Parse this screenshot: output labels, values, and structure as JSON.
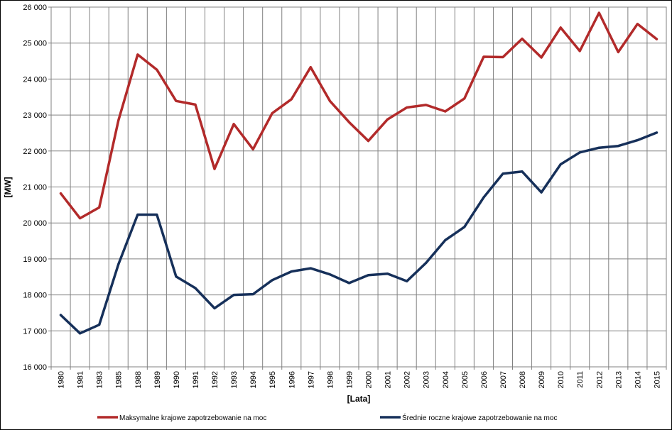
{
  "chart_data": {
    "type": "line",
    "title": "",
    "xlabel": "[Lata]",
    "ylabel": "[MW]",
    "ylim": [
      16000,
      26000
    ],
    "yticks": [
      16000,
      17000,
      18000,
      19000,
      20000,
      21000,
      22000,
      23000,
      24000,
      25000,
      26000
    ],
    "ytick_labels": [
      "16 000",
      "17 000",
      "18 000",
      "19 000",
      "20 000",
      "21 000",
      "22 000",
      "23 000",
      "24 000",
      "25 000",
      "26 000"
    ],
    "categories": [
      "1980",
      "1981",
      "1983",
      "1985",
      "1988",
      "1989",
      "1990",
      "1991",
      "1992",
      "1993",
      "1994",
      "1995",
      "1996",
      "1997",
      "1998",
      "1999",
      "2000",
      "2001",
      "2002",
      "2003",
      "2004",
      "2005",
      "2006",
      "2007",
      "2008",
      "2009",
      "2010",
      "2011",
      "2012",
      "2013",
      "2014",
      "2015"
    ],
    "grid": true,
    "legend_position": "bottom",
    "series": [
      {
        "name": "Maksymalne krajowe zapotrzebowanie na moc",
        "color": "#b22a2a",
        "values": [
          20820,
          20130,
          20430,
          22850,
          24680,
          24260,
          23390,
          23290,
          21500,
          22750,
          22050,
          23050,
          23440,
          24330,
          23390,
          22800,
          22280,
          22880,
          23210,
          23280,
          23100,
          23460,
          24620,
          24610,
          25120,
          24600,
          25430,
          24780,
          25840,
          24750,
          25530,
          25110
        ]
      },
      {
        "name": "Średnie roczne krajowe zapotrzebowanie na moc",
        "color": "#16305a",
        "values": [
          17440,
          16930,
          17170,
          18850,
          20230,
          20230,
          18510,
          18190,
          17630,
          18000,
          18020,
          18410,
          18650,
          18740,
          18570,
          18330,
          18550,
          18590,
          18380,
          18890,
          19520,
          19890,
          20710,
          21370,
          21430,
          20850,
          21630,
          21960,
          22090,
          22140,
          22300,
          22510
        ]
      }
    ]
  }
}
